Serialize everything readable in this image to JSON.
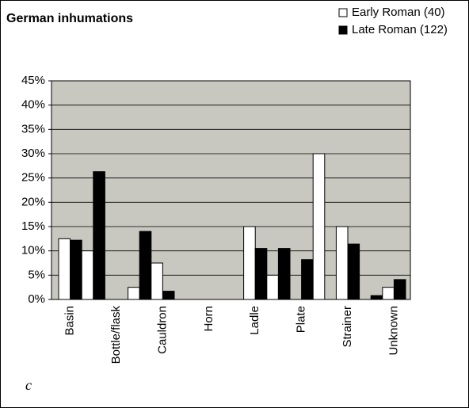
{
  "chart_data": {
    "type": "bar",
    "title": "German inhumations",
    "categories": [
      "Basin",
      null,
      "Bottle/flask",
      null,
      "Cauldron",
      null,
      "Horn",
      null,
      "Ladle",
      null,
      "Plate",
      null,
      "Strainer",
      null,
      "Unknown"
    ],
    "series": [
      {
        "name": "Early Roman (40)",
        "color": "#ffffff",
        "values": [
          12.5,
          10,
          0,
          2.5,
          7.5,
          0,
          0,
          0,
          15,
          5,
          0,
          30,
          15,
          0,
          2.5
        ]
      },
      {
        "name": "Late Roman (122)",
        "color": "#000000",
        "values": [
          12.2,
          26.3,
          0,
          14,
          1.7,
          0,
          0,
          0,
          10.5,
          10.5,
          8.2,
          0,
          11.4,
          0.8,
          4.1
        ]
      }
    ],
    "ylim": [
      0,
      45
    ],
    "yticks": [
      {
        "value": 0,
        "label": "0%"
      },
      {
        "value": 5,
        "label": "5%"
      },
      {
        "value": 10,
        "label": "10%"
      },
      {
        "value": 15,
        "label": "15%"
      },
      {
        "value": 20,
        "label": "20%"
      },
      {
        "value": 25,
        "label": "25%"
      },
      {
        "value": 30,
        "label": "30%"
      },
      {
        "value": 35,
        "label": "35%"
      },
      {
        "value": 40,
        "label": "40%"
      },
      {
        "value": 45,
        "label": "45%"
      }
    ],
    "grid": true,
    "legend": "top-right",
    "plot_background": "#c8c8c0",
    "annotation": "c"
  }
}
